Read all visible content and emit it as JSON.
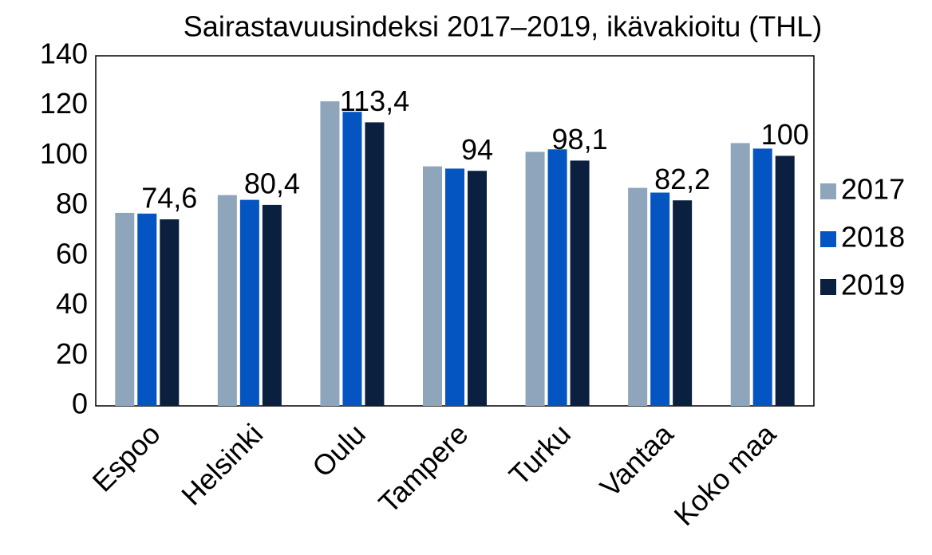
{
  "chart_data": {
    "type": "bar",
    "title": "Sairastavuusindeksi 2017–2019, ikävakioitu (THL)",
    "categories": [
      "Espoo",
      "Helsinki",
      "Oulu",
      "Tampere",
      "Turku",
      "Vantaa",
      "Koko maa"
    ],
    "series": [
      {
        "name": "2017",
        "color": "#8ea5bb",
        "values": [
          77.2,
          84.3,
          121.8,
          95.8,
          101.6,
          87.2,
          105.1
        ]
      },
      {
        "name": "2018",
        "color": "#0454c2",
        "values": [
          76.9,
          82.4,
          117.6,
          94.9,
          102.6,
          85.3,
          102.9
        ]
      },
      {
        "name": "2019",
        "color": "#0b1f3e",
        "values": [
          74.6,
          80.4,
          113.4,
          94,
          98.1,
          82.2,
          100
        ],
        "value_labels": [
          "74,6",
          "80,4",
          "113,4",
          "94",
          "98,1",
          "82,2",
          "100"
        ]
      }
    ],
    "ylim": [
      0,
      140
    ],
    "yticks": [
      0,
      20,
      40,
      60,
      80,
      100,
      120,
      140
    ],
    "grid": false,
    "legend": "right"
  }
}
